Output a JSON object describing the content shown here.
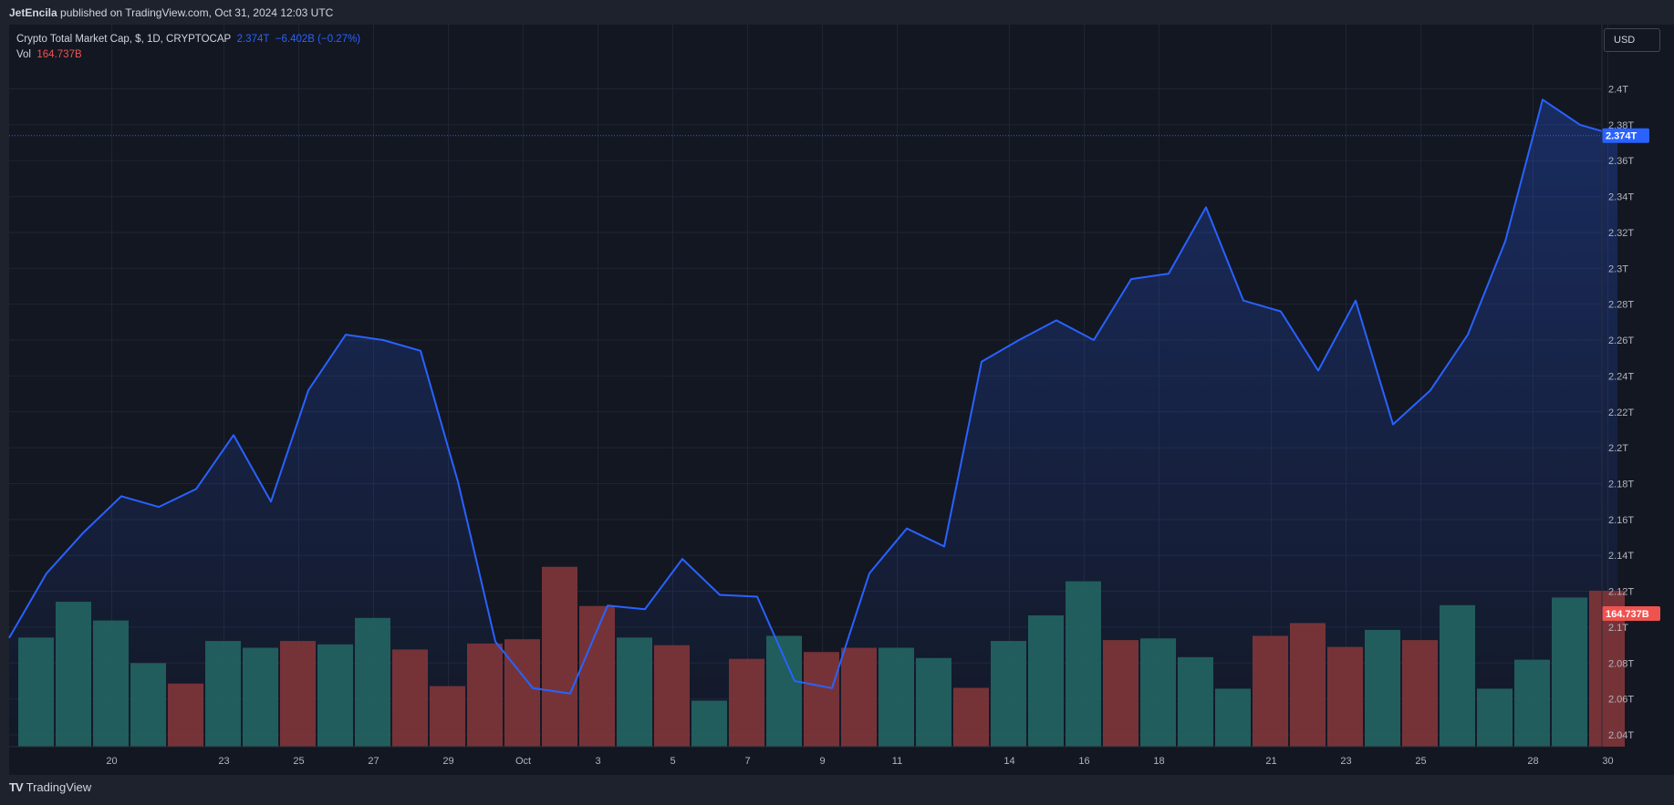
{
  "header": {
    "author": "JetEncila",
    "published_text": "published on TradingView.com, Oct 31, 2024 12:03 UTC"
  },
  "legend": {
    "symbol": "Crypto Total Market Cap, $, 1D, CRYPTOCAP",
    "last": "2.374T",
    "change": "−6.402B (−0.27%)",
    "vol_label": "Vol",
    "vol_value": "164.737B"
  },
  "currency_button": "USD",
  "footer": {
    "brand": "TradingView"
  },
  "colors": {
    "line": "#2962ff",
    "vol_up": "#22615f",
    "vol_down": "#7a3539",
    "last_price_badge": "#2962ff",
    "vol_badge": "#ef5350"
  },
  "chart_data": {
    "type": "area",
    "price_series": {
      "values": [
        2.094,
        2.13,
        2.153,
        2.173,
        2.167,
        2.177,
        2.207,
        2.17,
        2.232,
        2.263,
        2.26,
        2.254,
        2.181,
        2.092,
        2.066,
        2.063,
        2.112,
        2.11,
        2.138,
        2.118,
        2.117,
        2.07,
        2.066,
        2.13,
        2.155,
        2.145,
        2.248,
        2.26,
        2.271,
        2.26,
        2.294,
        2.297,
        2.334,
        2.282,
        2.276,
        2.243,
        2.282,
        2.213,
        2.232,
        2.263,
        2.315,
        2.394,
        2.38,
        2.374
      ]
    },
    "volume_series": {
      "values": [
        128,
        170,
        148,
        98,
        74,
        124,
        116,
        124,
        120,
        151,
        114,
        71,
        121,
        126,
        211,
        165,
        128,
        119,
        54,
        103,
        130,
        111,
        116,
        116,
        104,
        69,
        124,
        154,
        194,
        125,
        127,
        105,
        68,
        130,
        145,
        117,
        137,
        125,
        166,
        68,
        102,
        175,
        183
      ],
      "direction": [
        "up",
        "up",
        "up",
        "up",
        "down",
        "up",
        "up",
        "down",
        "up",
        "up",
        "down",
        "down",
        "down",
        "down",
        "down",
        "down",
        "up",
        "down",
        "up",
        "down",
        "up",
        "down",
        "down",
        "up",
        "up",
        "down",
        "up",
        "up",
        "up",
        "down",
        "up",
        "up",
        "up",
        "down",
        "down",
        "down",
        "up",
        "down",
        "up",
        "up",
        "up",
        "up",
        "down"
      ]
    },
    "y_axis": {
      "ticks": [
        "2.04T",
        "2.06T",
        "2.08T",
        "2.1T",
        "2.12T",
        "2.14T",
        "2.16T",
        "2.18T",
        "2.2T",
        "2.22T",
        "2.24T",
        "2.26T",
        "2.28T",
        "2.3T",
        "2.32T",
        "2.34T",
        "2.36T",
        "2.38T",
        "2.4T"
      ],
      "tick_values": [
        2.04,
        2.06,
        2.08,
        2.1,
        2.12,
        2.14,
        2.16,
        2.18,
        2.2,
        2.22,
        2.24,
        2.26,
        2.28,
        2.3,
        2.32,
        2.34,
        2.36,
        2.38,
        2.4
      ]
    },
    "x_axis": {
      "labels": [
        "20",
        "23",
        "25",
        "27",
        "29",
        "Oct",
        "3",
        "5",
        "7",
        "9",
        "11",
        "14",
        "16",
        "18",
        "21",
        "23",
        "25",
        "28",
        "30"
      ],
      "label_bar_index": [
        2,
        5,
        7,
        9,
        11,
        13,
        15,
        17,
        19,
        21,
        23,
        26,
        28,
        30,
        33,
        35,
        37,
        40,
        42
      ]
    },
    "last_price_label": "2.374T",
    "last_volume_label": "164.737B",
    "last_price_value": 2.374
  }
}
